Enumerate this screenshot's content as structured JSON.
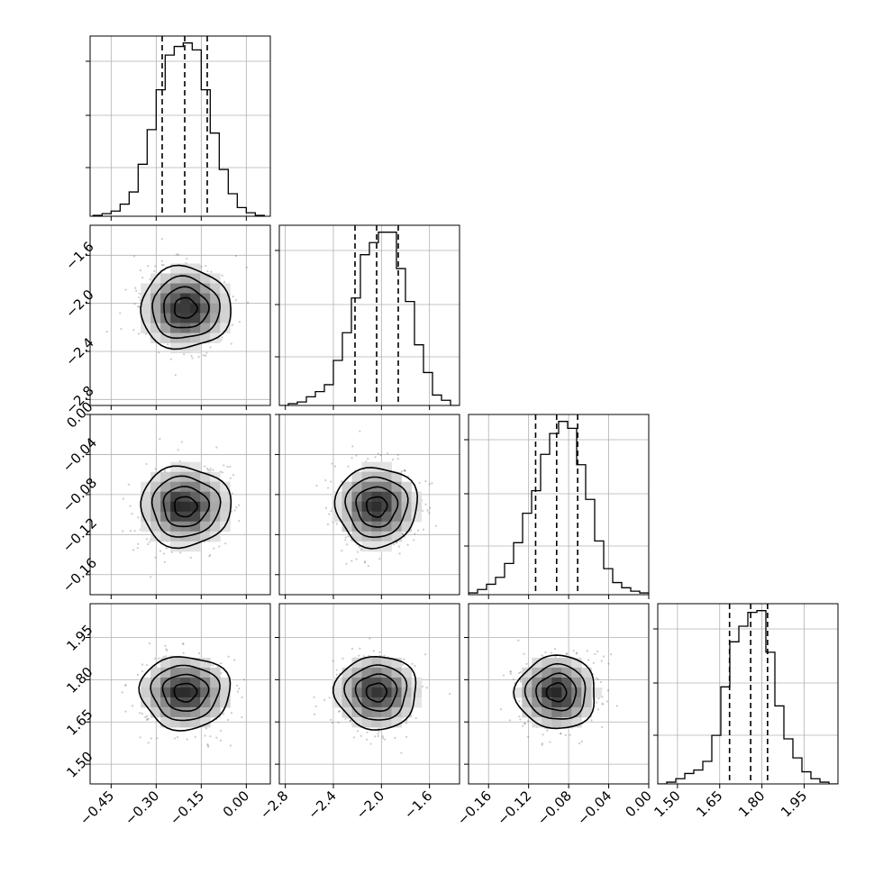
{
  "chart_data": {
    "type": "corner",
    "parameters": [
      {
        "ticks": [
          -0.45,
          -0.3,
          -0.15,
          0.0
        ],
        "tick_labels": [
          "−0.45",
          "−0.30",
          "−0.15",
          "0.00"
        ],
        "range": [
          -0.52,
          0.08
        ],
        "mean": -0.203,
        "sd": 0.075,
        "quantiles": [
          -0.28,
          -0.205,
          -0.13
        ],
        "hist": {
          "bins": [
            -0.51,
            -0.48,
            -0.45,
            -0.42,
            -0.39,
            -0.36,
            -0.33,
            -0.3,
            -0.27,
            -0.24,
            -0.21,
            -0.18,
            -0.15,
            -0.12,
            -0.09,
            -0.06,
            -0.03,
            0.0,
            0.03,
            0.06
          ],
          "counts": [
            0.005,
            0.015,
            0.03,
            0.07,
            0.14,
            0.3,
            0.5,
            0.73,
            0.93,
            0.98,
            1.0,
            0.96,
            0.73,
            0.48,
            0.27,
            0.13,
            0.05,
            0.02,
            0.005
          ]
        }
      },
      {
        "ticks": [
          -2.8,
          -2.4,
          -2.0,
          -1.6
        ],
        "tick_labels": [
          "−2.8",
          "−2.4",
          "−2.0",
          "−1.6"
        ],
        "range": [
          -2.85,
          -1.35
        ],
        "mean": -2.04,
        "sd": 0.17,
        "quantiles": [
          -2.22,
          -2.04,
          -1.86
        ],
        "hist": {
          "bins": [
            -2.85,
            -2.775,
            -2.7,
            -2.625,
            -2.55,
            -2.475,
            -2.4,
            -2.325,
            -2.25,
            -2.175,
            -2.1,
            -2.025,
            -1.95,
            -1.875,
            -1.8,
            -1.725,
            -1.65,
            -1.575,
            -1.5,
            -1.425,
            -1.35
          ],
          "counts": [
            0.0,
            0.01,
            0.02,
            0.05,
            0.08,
            0.12,
            0.26,
            0.42,
            0.62,
            0.87,
            0.94,
            1.0,
            1.0,
            0.79,
            0.6,
            0.35,
            0.19,
            0.06,
            0.03,
            0.0
          ]
        }
      },
      {
        "ticks": [
          -0.16,
          -0.12,
          -0.08,
          -0.04,
          0.0
        ],
        "tick_labels": [
          "−0.16",
          "−0.12",
          "−0.08",
          "−0.04",
          "0.00"
        ],
        "range": [
          -0.18,
          0.0
        ],
        "mean": -0.092,
        "sd": 0.02,
        "quantiles": [
          -0.113,
          -0.092,
          -0.071
        ],
        "hist": {
          "bins": [
            -0.18,
            -0.171,
            -0.162,
            -0.153,
            -0.144,
            -0.135,
            -0.126,
            -0.117,
            -0.108,
            -0.099,
            -0.09,
            -0.081,
            -0.072,
            -0.063,
            -0.054,
            -0.045,
            -0.036,
            -0.027,
            -0.018,
            -0.009,
            0.0
          ],
          "counts": [
            0.01,
            0.03,
            0.06,
            0.1,
            0.18,
            0.3,
            0.47,
            0.6,
            0.81,
            0.93,
            1.0,
            0.96,
            0.75,
            0.55,
            0.31,
            0.15,
            0.07,
            0.04,
            0.02,
            0.01
          ]
        }
      },
      {
        "ticks": [
          1.5,
          1.65,
          1.8,
          1.95
        ],
        "tick_labels": [
          "1.50",
          "1.65",
          "1.80",
          "1.95"
        ],
        "range": [
          1.43,
          2.07
        ],
        "mean": 1.755,
        "sd": 0.065,
        "quantiles": [
          1.685,
          1.76,
          1.82
        ],
        "hist": {
          "bins": [
            1.43,
            1.462,
            1.494,
            1.526,
            1.558,
            1.59,
            1.622,
            1.654,
            1.686,
            1.718,
            1.75,
            1.782,
            1.814,
            1.846,
            1.878,
            1.91,
            1.942,
            1.974,
            2.006,
            2.038,
            2.07
          ],
          "counts": [
            0.0,
            0.01,
            0.03,
            0.06,
            0.08,
            0.13,
            0.28,
            0.56,
            0.82,
            0.91,
            0.99,
            1.0,
            0.76,
            0.45,
            0.26,
            0.15,
            0.07,
            0.03,
            0.01,
            0.0
          ]
        }
      }
    ],
    "contour_levels_sigma": [
      0.5,
      1.0,
      1.5,
      2.0
    ],
    "grid": true
  }
}
